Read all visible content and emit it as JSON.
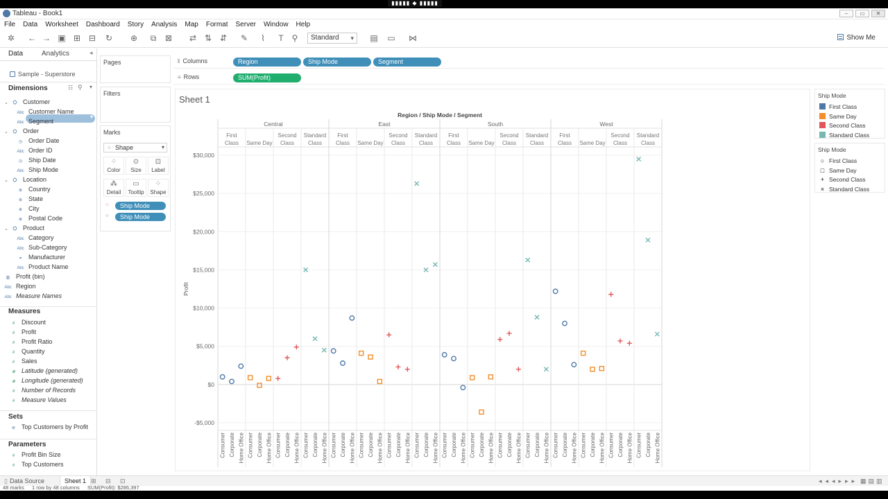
{
  "window": {
    "title": "Tableau - Book1",
    "float_bar": "▮▮▮▮▮ ◆ ▮▮▮▮▮"
  },
  "menu": [
    "File",
    "Data",
    "Worksheet",
    "Dashboard",
    "Story",
    "Analysis",
    "Map",
    "Format",
    "Server",
    "Window",
    "Help"
  ],
  "toolbar": {
    "fit_select": "Standard",
    "show_me": "Show Me"
  },
  "data_pane": {
    "tabs": {
      "data": "Data",
      "analytics": "Analytics"
    },
    "source": "Sample - Superstore",
    "dimensions_label": "Dimensions",
    "measures_label": "Measures",
    "sets_label": "Sets",
    "parameters_label": "Parameters",
    "dimensions": [
      {
        "label": "Customer",
        "kind": "folder"
      },
      {
        "label": "Customer Name",
        "kind": "abc",
        "indent": 1
      },
      {
        "label": "Segment",
        "kind": "abc",
        "indent": 1
      },
      {
        "label": "Order",
        "kind": "folder"
      },
      {
        "label": "Order Date",
        "kind": "date",
        "indent": 1
      },
      {
        "label": "Order ID",
        "kind": "abc",
        "indent": 1
      },
      {
        "label": "Ship Date",
        "kind": "date",
        "indent": 1
      },
      {
        "label": "Ship Mode",
        "kind": "abc",
        "indent": 1
      },
      {
        "label": "Location",
        "kind": "folder"
      },
      {
        "label": "Country",
        "kind": "geo",
        "indent": 1
      },
      {
        "label": "State",
        "kind": "geo",
        "indent": 1
      },
      {
        "label": "City",
        "kind": "geo",
        "indent": 1
      },
      {
        "label": "Postal Code",
        "kind": "geo",
        "indent": 1
      },
      {
        "label": "Product",
        "kind": "folder"
      },
      {
        "label": "Category",
        "kind": "abc",
        "indent": 1
      },
      {
        "label": "Sub-Category",
        "kind": "abc",
        "indent": 1
      },
      {
        "label": "Manufacturer",
        "kind": "link",
        "indent": 1
      },
      {
        "label": "Product Name",
        "kind": "abc",
        "indent": 1
      },
      {
        "label": "Profit (bin)",
        "kind": "bin"
      },
      {
        "label": "Region",
        "kind": "abc"
      },
      {
        "label": "Measure Names",
        "kind": "abc",
        "italic": true
      }
    ],
    "measures": [
      {
        "label": "Discount"
      },
      {
        "label": "Profit"
      },
      {
        "label": "Profit Ratio"
      },
      {
        "label": "Quantity"
      },
      {
        "label": "Sales"
      },
      {
        "label": "Latitude (generated)",
        "italic": true,
        "geo": true
      },
      {
        "label": "Longitude (generated)",
        "italic": true,
        "geo": true
      },
      {
        "label": "Number of Records",
        "italic": true
      },
      {
        "label": "Measure Values",
        "italic": true
      }
    ],
    "sets": [
      {
        "label": "Top Customers by Profit"
      }
    ],
    "parameters": [
      {
        "label": "Profit Bin Size"
      },
      {
        "label": "Top Customers"
      }
    ]
  },
  "cards": {
    "pages": "Pages",
    "filters": "Filters",
    "marks": "Marks",
    "mark_type": "Shape",
    "buttons": [
      "Color",
      "Size",
      "Label",
      "Detail",
      "Tooltip",
      "Shape"
    ],
    "mark_pills": [
      "Ship Mode",
      "Ship Mode"
    ]
  },
  "shelves": {
    "columns_label": "Columns",
    "rows_label": "Rows",
    "columns": [
      "Region",
      "Ship Mode",
      "Segment"
    ],
    "rows": [
      "SUM(Profit)"
    ]
  },
  "sheet": {
    "title": "Sheet 1"
  },
  "colors": {
    "First Class": "#4e79a7",
    "Same Day": "#f28e2b",
    "Second Class": "#e15759",
    "Standard Class": "#76b7b2"
  },
  "legends": {
    "color_title": "Ship Mode",
    "shape_title": "Ship Mode",
    "items": [
      "First Class",
      "Same Day",
      "Second Class",
      "Standard Class"
    ],
    "shape_glyphs": [
      "○",
      "□",
      "+",
      "×"
    ]
  },
  "chart_data": {
    "type": "scatter",
    "title": "Region / Ship Mode / Segment",
    "ylabel": "Profit",
    "ylim": [
      -6000,
      31000
    ],
    "y_ticks": [
      30000,
      25000,
      20000,
      15000,
      10000,
      5000,
      0,
      -5000
    ],
    "y_tick_labels": [
      "$30,000",
      "$25,000",
      "$20,000",
      "$15,000",
      "$10,000",
      "$5,000",
      "$0",
      "-$5,000"
    ],
    "regions": [
      "Central",
      "East",
      "South",
      "West"
    ],
    "ship_modes": [
      "First Class",
      "Same Day",
      "Second Class",
      "Standard Class"
    ],
    "ship_mode_labels": [
      [
        "First",
        "Class"
      ],
      [
        "Same Day"
      ],
      [
        "Second",
        "Class"
      ],
      [
        "Standard",
        "Class"
      ]
    ],
    "segments": [
      "Consumer",
      "Corporate",
      "Home Office"
    ],
    "values": {
      "Central": {
        "First Class": [
          1000,
          400,
          2400
        ],
        "Same Day": [
          900,
          -100,
          800
        ],
        "Second Class": [
          800,
          3500,
          4900
        ],
        "Standard Class": [
          15000,
          6000,
          4500
        ]
      },
      "East": {
        "First Class": [
          4400,
          2800,
          8700
        ],
        "Same Day": [
          4100,
          3600,
          400
        ],
        "Second Class": [
          6500,
          2300,
          2000
        ],
        "Standard Class": [
          26300,
          15000,
          15700
        ]
      },
      "South": {
        "First Class": [
          3900,
          3400,
          -400
        ],
        "Same Day": [
          900,
          -3600,
          1000
        ],
        "Second Class": [
          5900,
          6700,
          2000
        ],
        "Standard Class": [
          16300,
          8800,
          2000
        ]
      },
      "West": {
        "First Class": [
          12200,
          8000,
          2600
        ],
        "Same Day": [
          4100,
          2000,
          2100
        ],
        "Second Class": [
          11800,
          5700,
          5400
        ],
        "Standard Class": [
          29500,
          18900,
          6600
        ]
      }
    }
  },
  "bottom": {
    "data_source_tab": "Data Source",
    "sheet_tab": "Sheet 1"
  },
  "status": {
    "marks": "48 marks",
    "layout": "1 row by 48 columns",
    "sum": "SUM(Profit): $286,397"
  }
}
